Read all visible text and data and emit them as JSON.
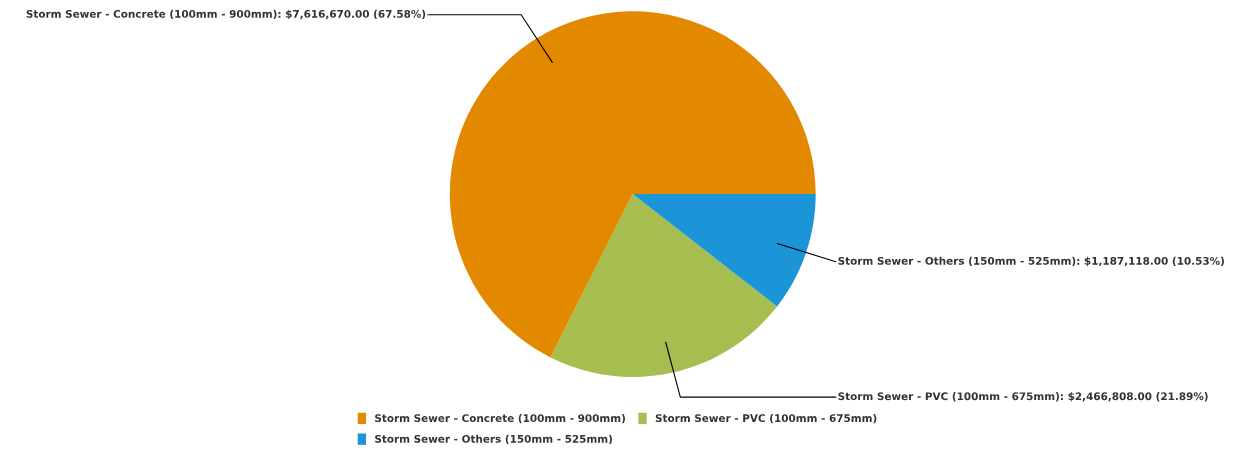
{
  "chart_data": {
    "type": "pie",
    "categories": [
      "Storm Sewer - Concrete (100mm - 900mm)",
      "Storm Sewer - PVC (100mm - 675mm)",
      "Storm Sewer - Others (150mm - 525mm)"
    ],
    "values": [
      7616670.0,
      2466808.0,
      1187118.0
    ],
    "colors": [
      "#e38900",
      "#a6bd50",
      "#1b95d8"
    ],
    "value_labels": [
      "Storm Sewer - Concrete (100mm - 900mm): $7,616,670.00 (67.58%)",
      "Storm Sewer - PVC (100mm - 675mm): $2,466,808.00 (21.89%)",
      "Storm Sewer - Others (150mm - 525mm): $1,187,118.00 (10.53%)"
    ],
    "legend": "bottom"
  }
}
